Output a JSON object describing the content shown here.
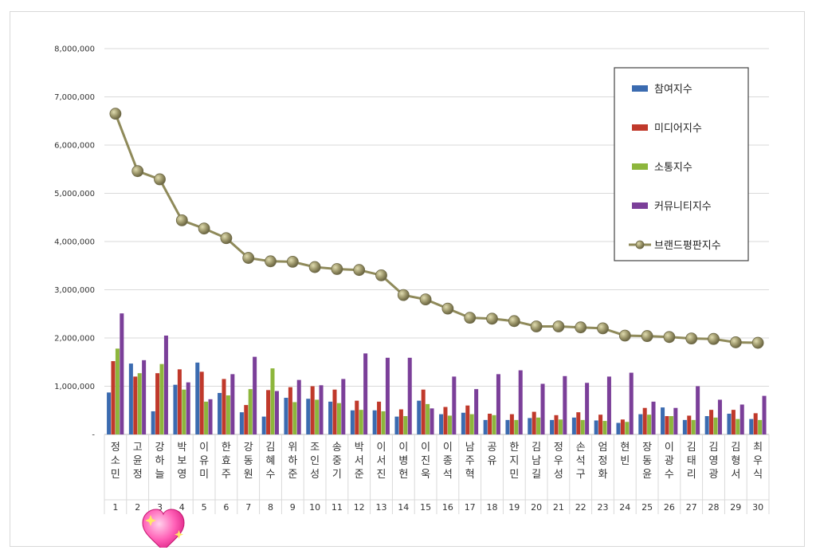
{
  "chart_data": {
    "type": "bar",
    "title": "",
    "xlabel": "",
    "ylabel": "",
    "ylim": [
      0,
      8000000
    ],
    "yticks": [
      "-",
      "1,000,000",
      "2,000,000",
      "3,000,000",
      "4,000,000",
      "5,000,000",
      "6,000,000",
      "7,000,000",
      "8,000,000"
    ],
    "grid": true,
    "legend_position": "top-right",
    "categories": [
      "정소민",
      "고윤정",
      "강하늘",
      "박보영",
      "이유미",
      "한효주",
      "강동원",
      "김혜수",
      "위하준",
      "조인성",
      "송중기",
      "박서준",
      "이서진",
      "이병헌",
      "이진욱",
      "이종석",
      "남주혁",
      "공유",
      "한지민",
      "김남길",
      "정우성",
      "손석구",
      "엄정화",
      "현빈",
      "장동윤",
      "이광수",
      "김태리",
      "김영광",
      "김형서",
      "최우식"
    ],
    "ranks": [
      "1",
      "2",
      "3",
      "4",
      "5",
      "6",
      "7",
      "8",
      "9",
      "10",
      "11",
      "12",
      "13",
      "14",
      "15",
      "16",
      "17",
      "18",
      "19",
      "20",
      "21",
      "22",
      "23",
      "24",
      "25",
      "26",
      "27",
      "28",
      "29",
      "30"
    ],
    "series": [
      {
        "name": "참여지수",
        "kind": "bar",
        "color": "#3b6bb0",
        "values": [
          870000,
          1470000,
          480000,
          1030000,
          1490000,
          860000,
          460000,
          370000,
          760000,
          740000,
          680000,
          500000,
          500000,
          370000,
          700000,
          420000,
          450000,
          300000,
          300000,
          340000,
          300000,
          350000,
          290000,
          240000,
          420000,
          560000,
          300000,
          380000,
          430000,
          320000
        ]
      },
      {
        "name": "미디어지수",
        "kind": "bar",
        "color": "#c0392b",
        "values": [
          1520000,
          1200000,
          1270000,
          1350000,
          1300000,
          1150000,
          610000,
          920000,
          980000,
          1000000,
          930000,
          700000,
          680000,
          520000,
          930000,
          570000,
          600000,
          430000,
          420000,
          470000,
          400000,
          460000,
          410000,
          310000,
          550000,
          380000,
          390000,
          510000,
          510000,
          440000
        ]
      },
      {
        "name": "소통지수",
        "kind": "bar",
        "color": "#8db63c",
        "values": [
          1780000,
          1270000,
          1460000,
          930000,
          680000,
          810000,
          940000,
          1370000,
          670000,
          720000,
          650000,
          510000,
          480000,
          380000,
          630000,
          390000,
          420000,
          400000,
          300000,
          350000,
          310000,
          300000,
          280000,
          260000,
          410000,
          380000,
          300000,
          350000,
          320000,
          300000
        ]
      },
      {
        "name": "커뮤니티지수",
        "kind": "bar",
        "color": "#7b3f99",
        "values": [
          2510000,
          1540000,
          2050000,
          1080000,
          730000,
          1250000,
          1610000,
          900000,
          1130000,
          1020000,
          1150000,
          1680000,
          1590000,
          1590000,
          540000,
          1200000,
          940000,
          1250000,
          1330000,
          1050000,
          1210000,
          1070000,
          1200000,
          1280000,
          680000,
          550000,
          1000000,
          720000,
          620000,
          800000
        ]
      },
      {
        "name": "브랜드평판지수",
        "kind": "line",
        "color": "#8f8a5a",
        "values": [
          6650000,
          5460000,
          5290000,
          4440000,
          4270000,
          4070000,
          3660000,
          3590000,
          3580000,
          3470000,
          3430000,
          3410000,
          3300000,
          2890000,
          2800000,
          2610000,
          2420000,
          2400000,
          2350000,
          2240000,
          2240000,
          2220000,
          2200000,
          2050000,
          2040000,
          2020000,
          1990000,
          1980000,
          1910000,
          1900000
        ]
      }
    ]
  }
}
